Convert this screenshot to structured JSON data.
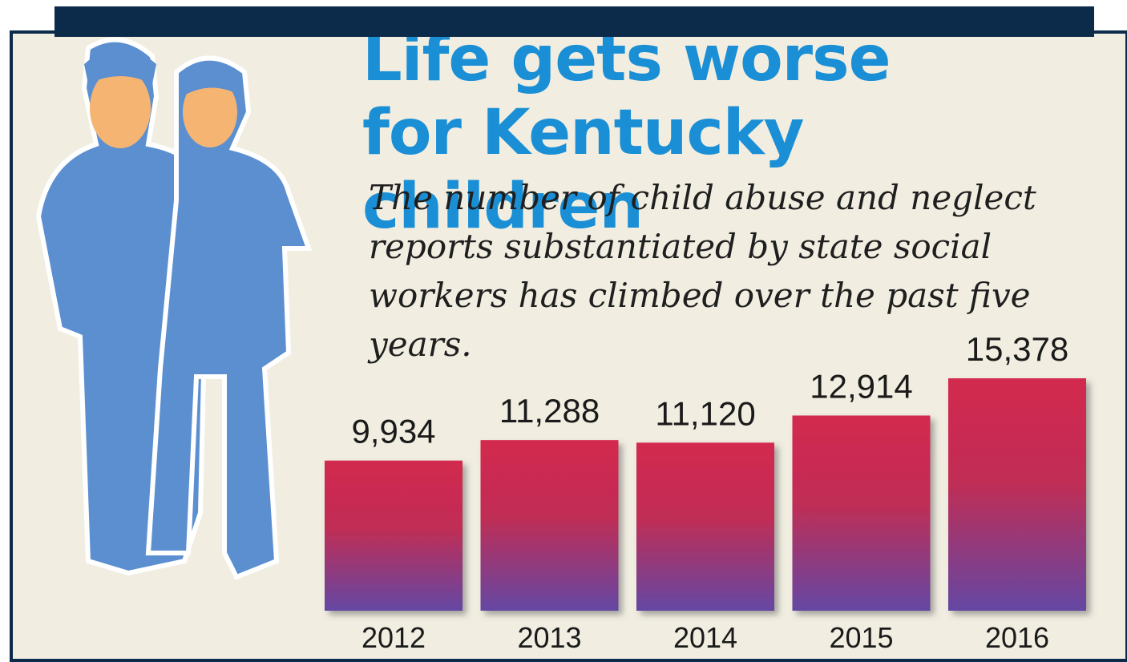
{
  "chart_data": {
    "type": "bar",
    "title": "Life gets worse for Kentucky children",
    "subtitle": "The number of child abuse and neglect reports substantiated by state social workers has climbed over the past five years.",
    "categories": [
      "2012",
      "2013",
      "2014",
      "2015",
      "2016"
    ],
    "values": [
      9934,
      11288,
      11120,
      12914,
      15378
    ],
    "value_labels": [
      "9,934",
      "11,288",
      "11,120",
      "12,914",
      "15,378"
    ],
    "color": "#d32a4f"
  }
}
